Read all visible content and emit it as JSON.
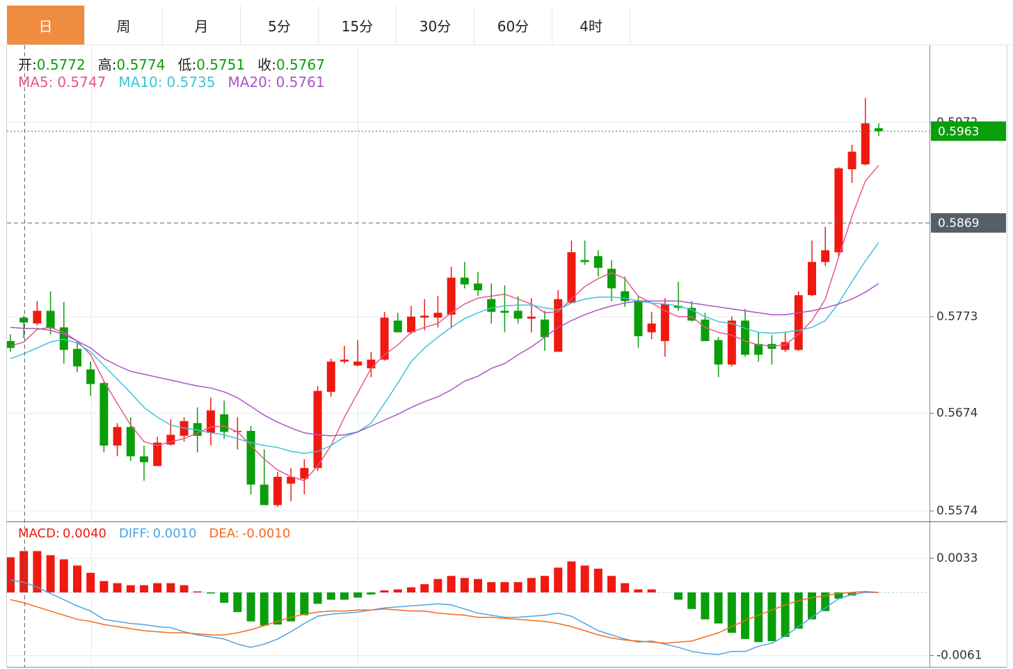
{
  "tabs": [
    "日",
    "周",
    "月",
    "5分",
    "15分",
    "30分",
    "60分",
    "4时"
  ],
  "active_tab": "日",
  "chart_data": [
    {
      "type": "candlestick",
      "up_color": "#f0190f",
      "down_color": "#0a9e0a",
      "info": [
        {
          "label": "开:",
          "value": "0.5772"
        },
        {
          "label": "高:",
          "value": "0.5774"
        },
        {
          "label": "低:",
          "value": "0.5751"
        },
        {
          "label": "收:",
          "value": "0.5767"
        }
      ],
      "open": [
        0.5748,
        0.5772,
        0.5766,
        0.5779,
        0.5762,
        0.574,
        0.5719,
        0.5705,
        0.5641,
        0.566,
        0.563,
        0.562,
        0.5642,
        0.5651,
        0.5664,
        0.5654,
        0.5673,
        0.5655,
        0.5656,
        0.5601,
        0.558,
        0.5602,
        0.5607,
        0.5618,
        0.5696,
        0.5727,
        0.5723,
        0.572,
        0.5729,
        0.5769,
        0.5757,
        0.5772,
        0.5772,
        0.5775,
        0.5813,
        0.5807,
        0.5791,
        0.5779,
        0.5779,
        0.5771,
        0.577,
        0.5737,
        0.5787,
        0.5831,
        0.5835,
        0.5822,
        0.5799,
        0.5789,
        0.5757,
        0.5748,
        0.5784,
        0.5782,
        0.577,
        0.5749,
        0.5724,
        0.5769,
        0.5745,
        0.5745,
        0.5739,
        0.5739,
        0.5795,
        0.5829,
        0.5839,
        0.5924,
        0.5929,
        0.5966
      ],
      "high": [
        0.5755,
        0.5774,
        0.5789,
        0.5799,
        0.5788,
        0.5748,
        0.5727,
        0.5707,
        0.5664,
        0.567,
        0.5641,
        0.565,
        0.5668,
        0.567,
        0.568,
        0.569,
        0.5687,
        0.567,
        0.5661,
        0.5637,
        0.5614,
        0.5618,
        0.5627,
        0.5702,
        0.573,
        0.5743,
        0.5749,
        0.5737,
        0.5778,
        0.5777,
        0.5784,
        0.5791,
        0.5794,
        0.5824,
        0.5829,
        0.5819,
        0.5807,
        0.5805,
        0.5794,
        0.5792,
        0.5779,
        0.58,
        0.5851,
        0.5851,
        0.5841,
        0.5831,
        0.5814,
        0.5794,
        0.5778,
        0.5792,
        0.5809,
        0.5789,
        0.5777,
        0.5752,
        0.5773,
        0.5781,
        0.5757,
        0.5754,
        0.5757,
        0.5799,
        0.5851,
        0.5865,
        0.5926,
        0.5949,
        0.5997,
        0.5971
      ],
      "low": [
        0.5737,
        0.5751,
        0.5764,
        0.5755,
        0.5725,
        0.5716,
        0.5692,
        0.5634,
        0.563,
        0.5625,
        0.5605,
        0.562,
        0.5641,
        0.5645,
        0.5634,
        0.5641,
        0.5648,
        0.5637,
        0.5591,
        0.558,
        0.5578,
        0.5584,
        0.5591,
        0.5615,
        0.5691,
        0.5725,
        0.5722,
        0.5711,
        0.5728,
        0.5757,
        0.5755,
        0.5759,
        0.5762,
        0.5761,
        0.5802,
        0.5794,
        0.5766,
        0.5757,
        0.5766,
        0.5757,
        0.5738,
        0.5737,
        0.5787,
        0.5826,
        0.5814,
        0.5789,
        0.5783,
        0.5741,
        0.575,
        0.5732,
        0.5779,
        0.5768,
        0.5748,
        0.5711,
        0.5722,
        0.5732,
        0.5727,
        0.5724,
        0.5737,
        0.5738,
        0.5794,
        0.5825,
        0.5834,
        0.591,
        0.5928,
        0.5958
      ],
      "close": [
        0.5741,
        0.5767,
        0.5779,
        0.5761,
        0.5739,
        0.5722,
        0.5704,
        0.5641,
        0.566,
        0.563,
        0.5624,
        0.5644,
        0.5652,
        0.5666,
        0.5651,
        0.5677,
        0.5655,
        0.5656,
        0.5601,
        0.558,
        0.5609,
        0.5609,
        0.5618,
        0.5697,
        0.5727,
        0.5729,
        0.5727,
        0.5729,
        0.5772,
        0.5757,
        0.5773,
        0.5774,
        0.5777,
        0.5813,
        0.5806,
        0.58,
        0.5778,
        0.5777,
        0.5771,
        0.5773,
        0.5752,
        0.5791,
        0.5839,
        0.5829,
        0.5823,
        0.5802,
        0.5789,
        0.5753,
        0.5766,
        0.5786,
        0.5782,
        0.5769,
        0.5748,
        0.5724,
        0.5769,
        0.5734,
        0.5734,
        0.574,
        0.5747,
        0.5795,
        0.5829,
        0.5841,
        0.5925,
        0.5942,
        0.5971,
        0.5963
      ],
      "series": [
        {
          "name": "MA5:",
          "color": "#e8568a",
          "legend_value": "0.5747",
          "values": [
            0.5743,
            0.5747,
            0.576,
            0.5762,
            0.5757,
            0.5748,
            0.5734,
            0.5707,
            0.5684,
            0.5662,
            0.5645,
            0.5641,
            0.5645,
            0.5648,
            0.5654,
            0.566,
            0.5661,
            0.5655,
            0.5641,
            0.5627,
            0.5616,
            0.5609,
            0.5605,
            0.562,
            0.5641,
            0.567,
            0.5695,
            0.572,
            0.5734,
            0.5744,
            0.5757,
            0.5762,
            0.5766,
            0.5777,
            0.5786,
            0.5792,
            0.5794,
            0.5796,
            0.5791,
            0.5786,
            0.5777,
            0.5778,
            0.5791,
            0.5804,
            0.5812,
            0.5818,
            0.5812,
            0.5794,
            0.5787,
            0.5779,
            0.5773,
            0.5773,
            0.5762,
            0.5757,
            0.5754,
            0.5748,
            0.5744,
            0.5743,
            0.5744,
            0.5755,
            0.5769,
            0.5791,
            0.5834,
            0.5876,
            0.5912,
            0.5928
          ]
        },
        {
          "name": "MA10:",
          "color": "#3dc3d8",
          "legend_value": "0.5735",
          "values": [
            0.573,
            0.5735,
            0.5741,
            0.5747,
            0.575,
            0.5746,
            0.5737,
            0.5723,
            0.5709,
            0.5695,
            0.568,
            0.567,
            0.5662,
            0.5659,
            0.5657,
            0.5654,
            0.5652,
            0.5648,
            0.5644,
            0.5641,
            0.5639,
            0.5635,
            0.5633,
            0.5635,
            0.5641,
            0.565,
            0.5655,
            0.5664,
            0.5684,
            0.5705,
            0.5727,
            0.5741,
            0.5752,
            0.5762,
            0.5771,
            0.5777,
            0.5782,
            0.5784,
            0.5785,
            0.5785,
            0.5782,
            0.578,
            0.5787,
            0.5791,
            0.5793,
            0.5793,
            0.5792,
            0.5789,
            0.5787,
            0.5786,
            0.5784,
            0.578,
            0.5773,
            0.5768,
            0.5766,
            0.5761,
            0.5757,
            0.5756,
            0.5757,
            0.5759,
            0.5762,
            0.5769,
            0.5787,
            0.5809,
            0.583,
            0.5849
          ]
        },
        {
          "name": "MA20:",
          "color": "#a855c6",
          "legend_value": "0.5761",
          "values": [
            0.5762,
            0.5761,
            0.5761,
            0.5759,
            0.5755,
            0.5748,
            0.5741,
            0.573,
            0.5723,
            0.5717,
            0.5714,
            0.5711,
            0.5708,
            0.5705,
            0.5702,
            0.57,
            0.5696,
            0.569,
            0.5681,
            0.5672,
            0.5665,
            0.5659,
            0.5654,
            0.5652,
            0.5651,
            0.5652,
            0.5655,
            0.5661,
            0.5667,
            0.5673,
            0.568,
            0.5686,
            0.5691,
            0.5698,
            0.5707,
            0.5712,
            0.572,
            0.5725,
            0.5734,
            0.5742,
            0.5752,
            0.5762,
            0.5769,
            0.5775,
            0.578,
            0.5784,
            0.5787,
            0.5789,
            0.5789,
            0.5789,
            0.5789,
            0.5787,
            0.5785,
            0.5783,
            0.5781,
            0.5779,
            0.5777,
            0.5775,
            0.5775,
            0.5777,
            0.5779,
            0.5782,
            0.5786,
            0.5791,
            0.5798,
            0.5807
          ]
        }
      ],
      "ylim": [
        0.5564,
        0.6051
      ],
      "yticks": [
        0.5574,
        0.5674,
        0.5773,
        0.5972
      ],
      "grid": true,
      "last_price": 0.5963,
      "crosshair_price": 0.5869
    },
    {
      "type": "macd",
      "series": [
        {
          "name": "MACD:",
          "kind": "bar",
          "color": "#f0190f",
          "down_color": "#0a9e0a",
          "legend_value": "0.0040",
          "values": [
            0.0034,
            0.004,
            0.004,
            0.0036,
            0.0032,
            0.0026,
            0.0019,
            0.0011,
            0.0009,
            0.0007,
            0.0007,
            0.0009,
            0.0009,
            0.0007,
            0.0001,
            -0.0001,
            -0.001,
            -0.0019,
            -0.0028,
            -0.0032,
            -0.0031,
            -0.0028,
            -0.0022,
            -0.0011,
            -0.0007,
            -0.0007,
            -0.0005,
            -0.0002,
            0.0002,
            0.0003,
            0.0005,
            0.0008,
            0.0013,
            0.0016,
            0.0014,
            0.0013,
            0.001,
            0.001,
            0.001,
            0.0014,
            0.0016,
            0.0024,
            0.003,
            0.0026,
            0.0023,
            0.0016,
            0.0009,
            0.0003,
            0.0003,
            0,
            -0.0007,
            -0.0016,
            -0.0026,
            -0.003,
            -0.0039,
            -0.0045,
            -0.0048,
            -0.0047,
            -0.0043,
            -0.0035,
            -0.0026,
            -0.0018,
            -0.0006,
            -0.0003,
            0,
            0
          ]
        },
        {
          "name": "DIFF:",
          "kind": "line",
          "color": "#4ba3e6",
          "legend_value": "0.0010",
          "values": [
            0.0012,
            0.001,
            0.0005,
            -0.0001,
            -0.0007,
            -0.0013,
            -0.0018,
            -0.0026,
            -0.0028,
            -0.003,
            -0.0031,
            -0.0033,
            -0.0034,
            -0.0038,
            -0.0041,
            -0.0043,
            -0.0045,
            -0.005,
            -0.0053,
            -0.005,
            -0.0045,
            -0.0038,
            -0.003,
            -0.0023,
            -0.0021,
            -0.002,
            -0.0019,
            -0.0017,
            -0.0015,
            -0.0014,
            -0.0013,
            -0.0012,
            -0.0011,
            -0.0012,
            -0.0016,
            -0.002,
            -0.0022,
            -0.0024,
            -0.0024,
            -0.0023,
            -0.0022,
            -0.002,
            -0.0023,
            -0.003,
            -0.0037,
            -0.0041,
            -0.0045,
            -0.0048,
            -0.0047,
            -0.005,
            -0.0053,
            -0.0057,
            -0.0059,
            -0.006,
            -0.0057,
            -0.0057,
            -0.0052,
            -0.0049,
            -0.0042,
            -0.0033,
            -0.0024,
            -0.0015,
            -0.0006,
            -0.0002,
            0,
            0
          ]
        },
        {
          "name": "DEA:",
          "kind": "line",
          "color": "#f26b1d",
          "legend_value": "-0.0010",
          "values": [
            -0.0007,
            -0.001,
            -0.0014,
            -0.0018,
            -0.0022,
            -0.0026,
            -0.0028,
            -0.0031,
            -0.0033,
            -0.0035,
            -0.0037,
            -0.0038,
            -0.0039,
            -0.0039,
            -0.004,
            -0.0041,
            -0.0041,
            -0.0039,
            -0.0036,
            -0.0032,
            -0.0028,
            -0.0024,
            -0.0021,
            -0.0019,
            -0.0018,
            -0.0018,
            -0.0017,
            -0.0017,
            -0.0016,
            -0.0017,
            -0.0018,
            -0.0018,
            -0.002,
            -0.0021,
            -0.0022,
            -0.0024,
            -0.0024,
            -0.0025,
            -0.0026,
            -0.0027,
            -0.0028,
            -0.003,
            -0.0033,
            -0.0037,
            -0.0041,
            -0.0044,
            -0.0046,
            -0.0047,
            -0.0048,
            -0.0049,
            -0.0048,
            -0.0047,
            -0.0043,
            -0.0039,
            -0.0033,
            -0.0027,
            -0.0022,
            -0.0017,
            -0.0012,
            -0.0008,
            -0.0005,
            -0.0003,
            -0.0001,
            0,
            0.0001,
            0
          ]
        }
      ],
      "ylim": [
        -0.0074,
        0.0068
      ],
      "yticks": [
        0.0033,
        -0.0061
      ],
      "grid": true
    }
  ]
}
